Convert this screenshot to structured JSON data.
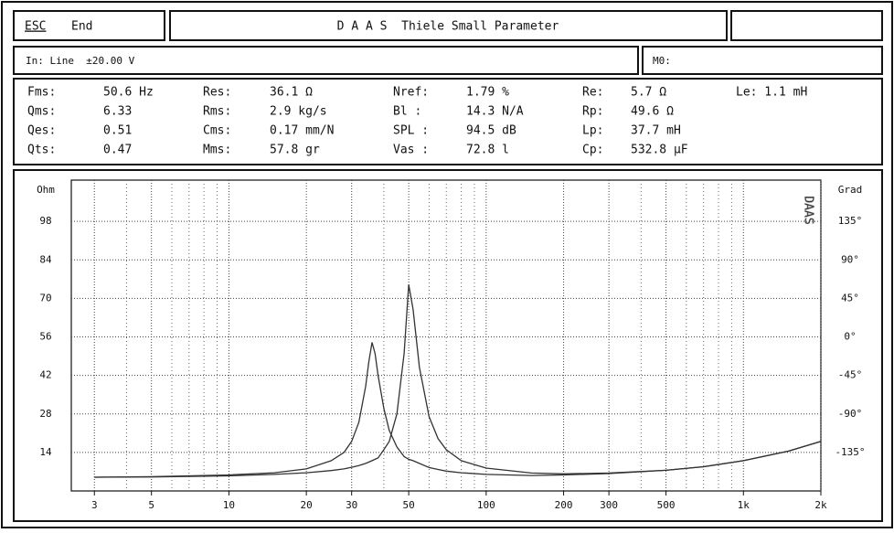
{
  "header": {
    "esc": "ESC",
    "end": "End",
    "title": "D A A S  Thiele Small Parameter"
  },
  "input": {
    "line": "In: Line  ±20.00 V",
    "m0": "M0:"
  },
  "parameters": [
    [
      [
        "Fms:",
        "50.6 Hz"
      ],
      [
        "Res:",
        "36.1 Ω"
      ],
      [
        "Nref:",
        "1.79 %"
      ],
      [
        "Re:",
        "5.7 Ω"
      ],
      [
        "Le: 1.1 mH"
      ]
    ],
    [
      [
        "Qms:",
        "6.33"
      ],
      [
        "Rms:",
        "2.9 kg/s"
      ],
      [
        "Bl  :",
        "14.3 N/A"
      ],
      [
        "Rp:",
        "49.6 Ω"
      ]
    ],
    [
      [
        "Qes:",
        "0.51"
      ],
      [
        "Cms:",
        "0.17 mm/N"
      ],
      [
        "SPL :",
        "94.5 dB"
      ],
      [
        "Lp:",
        "37.7 mH"
      ]
    ],
    [
      [
        "Qts:",
        "0.47"
      ],
      [
        "Mms:",
        "57.8 gr"
      ],
      [
        "Vas :",
        "72.8 l"
      ],
      [
        "Cp:",
        "532.8 µF"
      ]
    ]
  ],
  "chart_data": {
    "type": "line",
    "watermark": "DAAS",
    "xscale": "log",
    "grid": true,
    "x": [
      3,
      5,
      10,
      15,
      20,
      25,
      28,
      30,
      32,
      34,
      35,
      36,
      37,
      38,
      40,
      42,
      45,
      48,
      50,
      52,
      55,
      60,
      65,
      70,
      80,
      100,
      150,
      200,
      300,
      500,
      700,
      1000,
      1500,
      2000
    ],
    "series": [
      {
        "color": "#333333",
        "values": [
          5.0,
          5.2,
          5.8,
          6.6,
          8.0,
          11,
          14,
          18,
          25,
          38,
          47,
          54,
          50,
          42,
          30,
          22,
          16,
          12.5,
          11.5,
          11,
          10,
          8.5,
          7.8,
          7.2,
          6.6,
          6.0,
          5.6,
          5.8,
          6.3,
          7.5,
          8.8,
          11,
          14.5,
          18
        ]
      },
      {
        "color": "#333333",
        "values": [
          5.0,
          5.1,
          5.5,
          6.0,
          6.6,
          7.4,
          8.0,
          8.6,
          9.2,
          10,
          10.5,
          11,
          11.5,
          12,
          15,
          18,
          28,
          50,
          75,
          66,
          45,
          27,
          19,
          15,
          11,
          8.3,
          6.5,
          6.2,
          6.5,
          7.5,
          8.8,
          11,
          14.5,
          18
        ]
      }
    ],
    "xlim": [
      2.44,
      2000
    ],
    "xticks": [
      3,
      5,
      10,
      20,
      30,
      50,
      100,
      200,
      300,
      500,
      {
        "value": 1000,
        "label": "1k"
      },
      {
        "value": 2000,
        "label": "2k"
      }
    ],
    "ylim": [
      0,
      112
    ],
    "yticks": [
      14,
      28,
      42,
      56,
      70,
      84,
      98,
      {
        "value": 112,
        "label": "Ohm"
      }
    ],
    "y2lim": [
      -180,
      180
    ],
    "y2ticks": [
      {
        "value": -135,
        "label": "-135°"
      },
      {
        "value": -90,
        "label": "-90°"
      },
      {
        "value": -45,
        "label": "-45°"
      },
      {
        "value": 0,
        "label": "0°"
      },
      {
        "value": 45,
        "label": "45°"
      },
      {
        "value": 90,
        "label": "90°"
      },
      {
        "value": 135,
        "label": "135°"
      },
      {
        "value": 180,
        "label": "Grad"
      }
    ]
  }
}
